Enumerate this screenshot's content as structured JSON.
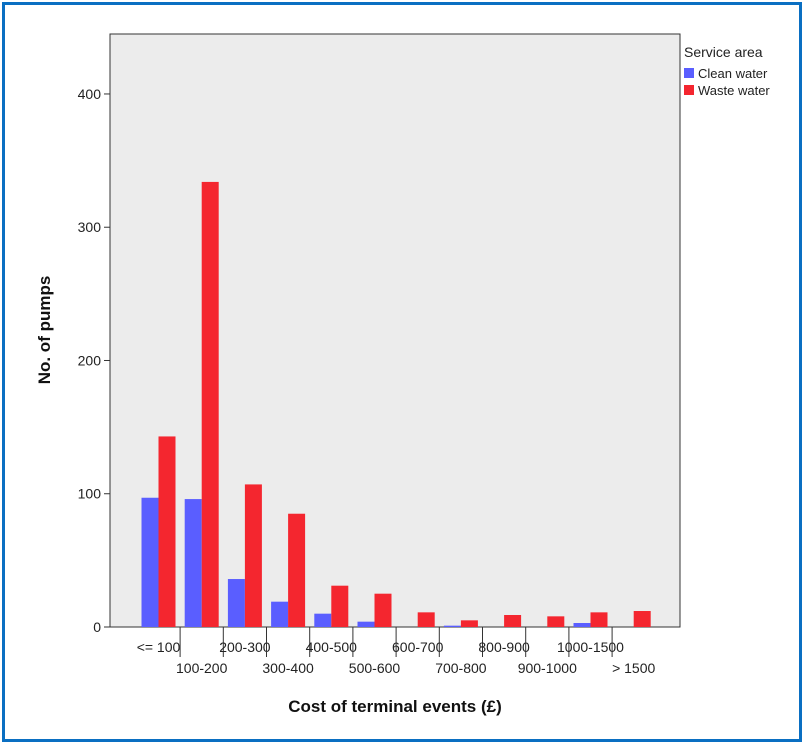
{
  "chart_data": {
    "type": "bar",
    "title": "",
    "xlabel": "Cost of terminal events (£)",
    "ylabel": "No. of pumps",
    "ylim": [
      0,
      445
    ],
    "yticks": [
      0,
      100,
      200,
      300,
      400
    ],
    "categories": [
      "<= 100",
      "100-200",
      "200-300",
      "300-400",
      "400-500",
      "500-600",
      "600-700",
      "700-800",
      "800-900",
      "900-1000",
      "1000-1500",
      "> 1500"
    ],
    "series": [
      {
        "name": "Clean water",
        "color": "#5a5eff",
        "values": [
          97,
          96,
          36,
          19,
          10,
          4,
          0,
          1,
          0,
          0,
          3,
          0
        ]
      },
      {
        "name": "Waste water",
        "color": "#f4262f",
        "values": [
          143,
          334,
          107,
          85,
          31,
          25,
          11,
          5,
          9,
          8,
          11,
          12
        ]
      }
    ],
    "legend": {
      "title": "Service area",
      "position": "right"
    },
    "plot_background": "#ececec",
    "grid": false
  }
}
